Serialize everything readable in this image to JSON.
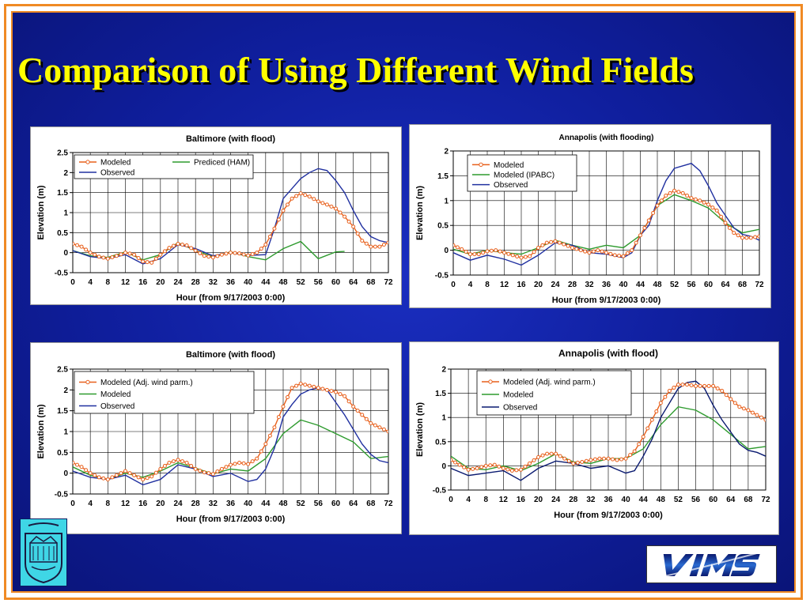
{
  "slide": {
    "title": "Comparison of Using Different Wind Fields",
    "colors": {
      "title": "#ffff00",
      "background": "#0f1e9c",
      "frame": "#f08a24"
    }
  },
  "chart_data": [
    {
      "type": "line",
      "title": "Baltimore (with flood)",
      "xlabel": "Hour (from 9/17/2003 0:00)",
      "ylabel": "Elevation (m)",
      "xlim": [
        0,
        72
      ],
      "ylim": [
        -0.5,
        2.5
      ],
      "xticks": [
        "0",
        "4",
        "8",
        "12",
        "16",
        "20",
        "24",
        "28",
        "32",
        "36",
        "40",
        "44",
        "48",
        "52",
        "56",
        "60",
        "64",
        "68",
        "72"
      ],
      "yticks": [
        "-0.5",
        "0",
        "0.5",
        "1",
        "1.5",
        "2",
        "2.5"
      ],
      "legend_layout": "two-column",
      "grid": true,
      "series": [
        {
          "name": "Modeled",
          "color": "#e8601c",
          "marker": "circle",
          "x": [
            0,
            2,
            4,
            6,
            8,
            10,
            12,
            14,
            16,
            18,
            20,
            22,
            24,
            26,
            28,
            30,
            32,
            34,
            36,
            38,
            40,
            42,
            44,
            46,
            48,
            50,
            52,
            54,
            56,
            58,
            60,
            62,
            64,
            66,
            68,
            70,
            72
          ],
          "y": [
            0.22,
            0.15,
            0,
            -0.1,
            -0.15,
            -0.08,
            0,
            -0.05,
            -0.22,
            -0.25,
            -0.05,
            0.12,
            0.22,
            0.18,
            0.05,
            -0.08,
            -0.12,
            -0.05,
            0,
            -0.02,
            -0.07,
            0,
            0.2,
            0.6,
            1.05,
            1.35,
            1.48,
            1.4,
            1.28,
            1.2,
            1.1,
            0.9,
            0.65,
            0.3,
            0.15,
            0.15,
            0.25
          ]
        },
        {
          "name": "Prediced (HAM)",
          "color": "#2e9b2e",
          "x": [
            0,
            4,
            8,
            12,
            16,
            20,
            24,
            28,
            32,
            36,
            40,
            44,
            48,
            52,
            56,
            60,
            62
          ],
          "y": [
            0.05,
            -0.08,
            -0.12,
            0.02,
            -0.18,
            -0.05,
            0.25,
            0.05,
            -0.1,
            0.02,
            -0.1,
            -0.18,
            0.1,
            0.28,
            -0.15,
            0.02,
            0.03
          ]
        },
        {
          "name": "Observed",
          "color": "#2030a0",
          "x": [
            0,
            4,
            8,
            12,
            16,
            20,
            24,
            28,
            32,
            36,
            40,
            44,
            46,
            48,
            50,
            52,
            54,
            56,
            58,
            60,
            62,
            64,
            66,
            68,
            70,
            72
          ],
          "y": [
            0.05,
            -0.1,
            -0.15,
            -0.05,
            -0.28,
            -0.15,
            0.2,
            0.1,
            -0.08,
            0,
            -0.07,
            -0.05,
            0.6,
            1.35,
            1.6,
            1.85,
            2.0,
            2.1,
            2.05,
            1.8,
            1.5,
            1.05,
            0.65,
            0.4,
            0.3,
            0.25
          ]
        }
      ]
    },
    {
      "type": "line",
      "title": "Annapolis (with flooding)",
      "xlabel": "Hour (from 9/17/2003 0:00)",
      "ylabel": "Elevation (m)",
      "xlim": [
        0,
        72
      ],
      "ylim": [
        -0.5,
        2
      ],
      "xticks": [
        "0",
        "4",
        "8",
        "12",
        "16",
        "20",
        "24",
        "28",
        "32",
        "36",
        "40",
        "44",
        "48",
        "52",
        "56",
        "60",
        "64",
        "68",
        "72"
      ],
      "yticks": [
        "-0.5",
        "0",
        "0.5",
        "1",
        "1.5",
        "2"
      ],
      "legend_layout": "one-column",
      "grid": true,
      "series": [
        {
          "name": "Modeled",
          "color": "#e8601c",
          "marker": "circle",
          "x": [
            0,
            2,
            4,
            6,
            8,
            10,
            12,
            14,
            16,
            18,
            20,
            22,
            24,
            26,
            28,
            30,
            32,
            34,
            36,
            38,
            40,
            42,
            44,
            46,
            48,
            50,
            52,
            54,
            56,
            58,
            60,
            62,
            64,
            66,
            68,
            70,
            72
          ],
          "y": [
            0.1,
            0.02,
            -0.08,
            -0.08,
            -0.02,
            0,
            -0.05,
            -0.1,
            -0.15,
            -0.12,
            0.05,
            0.15,
            0.18,
            0.12,
            0.05,
            0,
            -0.05,
            0,
            -0.05,
            -0.1,
            -0.12,
            0,
            0.3,
            0.6,
            0.9,
            1.1,
            1.2,
            1.15,
            1.05,
            1.0,
            0.92,
            0.8,
            0.55,
            0.35,
            0.25,
            0.25,
            0.28
          ]
        },
        {
          "name": "Modeled (IPABC)",
          "color": "#2e9b2e",
          "x": [
            0,
            4,
            8,
            12,
            16,
            20,
            24,
            28,
            32,
            36,
            40,
            44,
            48,
            52,
            56,
            60,
            64,
            68,
            72
          ],
          "y": [
            0.02,
            -0.08,
            0,
            -0.05,
            -0.08,
            0.05,
            0.2,
            0.1,
            0.02,
            0.1,
            0.05,
            0.3,
            0.9,
            1.12,
            1.0,
            0.85,
            0.55,
            0.35,
            0.42
          ]
        },
        {
          "name": "Observed",
          "color": "#2030a0",
          "x": [
            0,
            4,
            8,
            12,
            16,
            20,
            24,
            28,
            32,
            36,
            40,
            42,
            44,
            46,
            48,
            50,
            52,
            54,
            56,
            58,
            60,
            62,
            64,
            66,
            68,
            70,
            72
          ],
          "y": [
            -0.05,
            -0.2,
            -0.1,
            -0.18,
            -0.3,
            -0.1,
            0.15,
            0.1,
            -0.05,
            -0.08,
            -0.15,
            -0.05,
            0.3,
            0.5,
            1.0,
            1.4,
            1.65,
            1.7,
            1.75,
            1.6,
            1.3,
            0.95,
            0.7,
            0.45,
            0.32,
            0.28,
            0.2
          ]
        }
      ]
    },
    {
      "type": "line",
      "title": "Baltimore (with flood)",
      "xlabel": "Hour (from 9/17/2003 0:00)",
      "ylabel": "Elevation (m)",
      "xlim": [
        0,
        72
      ],
      "ylim": [
        -0.5,
        2.5
      ],
      "xticks": [
        "0",
        "4",
        "8",
        "12",
        "16",
        "20",
        "24",
        "28",
        "32",
        "36",
        "40",
        "44",
        "48",
        "52",
        "56",
        "60",
        "64",
        "68",
        "72"
      ],
      "yticks": [
        "-0.5",
        "0",
        "0.5",
        "1",
        "1.5",
        "2",
        "2.5"
      ],
      "legend_layout": "one-column",
      "grid": true,
      "series": [
        {
          "name": "Modeled (Adj. wind parm.)",
          "color": "#e8601c",
          "marker": "circle",
          "x": [
            0,
            2,
            4,
            6,
            8,
            10,
            12,
            14,
            16,
            18,
            20,
            22,
            24,
            26,
            28,
            30,
            32,
            34,
            36,
            38,
            40,
            42,
            44,
            46,
            48,
            50,
            52,
            54,
            56,
            58,
            60,
            62,
            64,
            66,
            68,
            70,
            72
          ],
          "y": [
            0.25,
            0.15,
            0,
            -0.1,
            -0.15,
            -0.05,
            0.05,
            -0.05,
            -0.15,
            -0.08,
            0.1,
            0.25,
            0.32,
            0.25,
            0.1,
            0.02,
            -0.02,
            0.1,
            0.2,
            0.25,
            0.22,
            0.35,
            0.7,
            1.1,
            1.6,
            2.05,
            2.15,
            2.1,
            2.05,
            2.0,
            1.95,
            1.85,
            1.6,
            1.4,
            1.2,
            1.1,
            1.0
          ]
        },
        {
          "name": "Modeled",
          "color": "#2e9b2e",
          "x": [
            0,
            4,
            8,
            12,
            16,
            20,
            24,
            28,
            32,
            36,
            40,
            44,
            48,
            52,
            56,
            60,
            64,
            68,
            72
          ],
          "y": [
            0.15,
            -0.05,
            -0.15,
            0.0,
            -0.1,
            0.05,
            0.25,
            0.12,
            -0.02,
            0.1,
            0.05,
            0.35,
            0.95,
            1.28,
            1.15,
            0.95,
            0.75,
            0.35,
            0.4
          ]
        },
        {
          "name": "Observed",
          "color": "#2030a0",
          "x": [
            0,
            4,
            8,
            12,
            16,
            20,
            24,
            28,
            32,
            36,
            40,
            42,
            44,
            46,
            48,
            50,
            52,
            54,
            56,
            58,
            60,
            62,
            64,
            66,
            68,
            70,
            72
          ],
          "y": [
            0.05,
            -0.1,
            -0.15,
            -0.05,
            -0.28,
            -0.15,
            0.2,
            0.1,
            -0.08,
            0,
            -0.2,
            -0.15,
            0.1,
            0.6,
            1.35,
            1.65,
            1.9,
            2.0,
            2.05,
            2.0,
            1.7,
            1.4,
            1.05,
            0.7,
            0.45,
            0.3,
            0.25
          ]
        }
      ]
    },
    {
      "type": "line",
      "title": "Annapolis (with flood)",
      "xlabel": "Hour (from 9/17/2003 0:00)",
      "ylabel": "Elevation (m)",
      "xlim": [
        0,
        72
      ],
      "ylim": [
        -0.5,
        2
      ],
      "xticks": [
        "0",
        "4",
        "8",
        "12",
        "16",
        "20",
        "24",
        "28",
        "32",
        "36",
        "40",
        "44",
        "48",
        "52",
        "56",
        "60",
        "64",
        "68",
        "72"
      ],
      "yticks": [
        "-0.5",
        "0",
        "0.5",
        "1",
        "1.5",
        "2"
      ],
      "legend_layout": "one-column",
      "grid": true,
      "series": [
        {
          "name": "Modeled (Adj. wind parm.)",
          "color": "#e8601c",
          "marker": "circle",
          "x": [
            0,
            2,
            4,
            6,
            8,
            10,
            12,
            14,
            16,
            18,
            20,
            22,
            24,
            26,
            28,
            30,
            32,
            34,
            36,
            38,
            40,
            42,
            44,
            46,
            48,
            50,
            52,
            54,
            56,
            58,
            60,
            62,
            64,
            66,
            68,
            70,
            72
          ],
          "y": [
            0.12,
            0.02,
            -0.08,
            -0.05,
            0,
            0.02,
            -0.05,
            -0.1,
            -0.08,
            0.05,
            0.18,
            0.25,
            0.25,
            0.15,
            0.05,
            0.08,
            0.12,
            0.15,
            0.15,
            0.12,
            0.15,
            0.3,
            0.6,
            0.95,
            1.3,
            1.55,
            1.68,
            1.68,
            1.65,
            1.65,
            1.65,
            1.55,
            1.38,
            1.22,
            1.15,
            1.05,
            0.95
          ]
        },
        {
          "name": "Modeled",
          "color": "#2e9b2e",
          "x": [
            0,
            4,
            8,
            12,
            16,
            20,
            24,
            28,
            32,
            36,
            40,
            44,
            48,
            52,
            56,
            60,
            64,
            68,
            72
          ],
          "y": [
            0.2,
            -0.05,
            -0.08,
            0,
            -0.1,
            0.05,
            0.25,
            0.08,
            0.05,
            0.15,
            0.15,
            0.35,
            0.85,
            1.22,
            1.15,
            0.95,
            0.65,
            0.35,
            0.4
          ]
        },
        {
          "name": "Observed",
          "color": "#0a1a70",
          "x": [
            0,
            4,
            8,
            12,
            16,
            20,
            24,
            28,
            32,
            36,
            40,
            42,
            44,
            46,
            48,
            50,
            52,
            54,
            56,
            58,
            60,
            62,
            64,
            66,
            68,
            70,
            72
          ],
          "y": [
            -0.05,
            -0.2,
            -0.15,
            -0.1,
            -0.3,
            -0.05,
            0.1,
            0.05,
            -0.05,
            0,
            -0.15,
            -0.1,
            0.2,
            0.55,
            1.0,
            1.3,
            1.6,
            1.72,
            1.75,
            1.6,
            1.25,
            0.95,
            0.7,
            0.45,
            0.32,
            0.28,
            0.2
          ]
        }
      ]
    }
  ]
}
